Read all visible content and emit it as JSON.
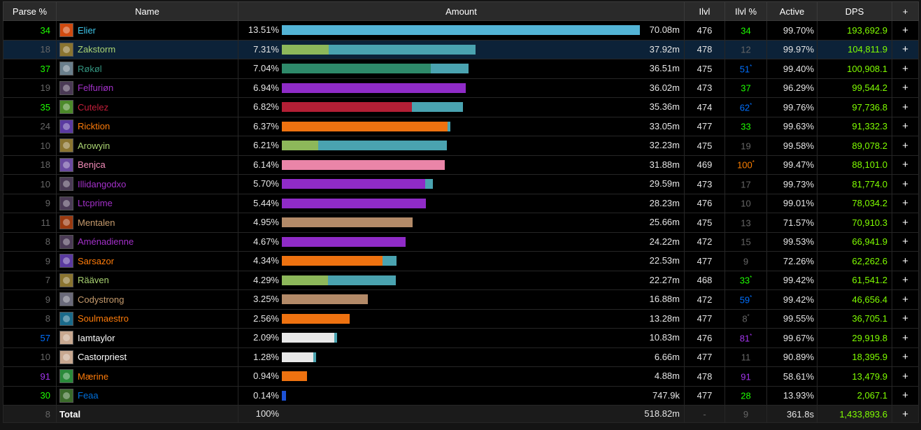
{
  "headers": {
    "parse": "Parse %",
    "name": "Name",
    "amount": "Amount",
    "ilvl": "Ilvl",
    "ilvlp": "Ilvl %",
    "active": "Active",
    "dps": "DPS",
    "plus": "+"
  },
  "colors": {
    "parse_green": "#1eff00",
    "parse_gray": "#666666",
    "parse_blue": "#0070ff",
    "parse_purple": "#a335ee",
    "ilvlp_orange": "#ff8000",
    "dps": "#80ff00",
    "bar_cyan": "#53b4d6",
    "bar_green": "#8db85a",
    "bar_teal": "#4aa3b0",
    "bar_sea": "#2e8a6a",
    "bar_purple": "#8f2bc7",
    "bar_red": "#b31f35",
    "bar_orange": "#ee7210",
    "bar_pink": "#ea85a8",
    "bar_tan": "#b38a68",
    "bar_white": "#e8e8e8",
    "bar_blue": "#1d52d6"
  },
  "rows": [
    {
      "parse": "34",
      "parse_color": "#1eff00",
      "icon": "mage-icon",
      "icon_color": "#cf4a10",
      "name": "Elier",
      "name_color": "#3fc7eb",
      "pct": "13.51%",
      "amount": "70.08m",
      "frac": 1.0,
      "segs": [
        {
          "f": 1.0,
          "c": "#53b4d6"
        }
      ],
      "ilvl": "476",
      "ilvlp": "34",
      "ilvlp_mark": "",
      "ilvlp_color": "#1eff00",
      "active": "99.70%",
      "dps": "193,692.9",
      "plus": "+"
    },
    {
      "parse": "18",
      "parse_color": "#666666",
      "icon": "hunter-icon",
      "icon_color": "#8a7430",
      "name": "Zakstorm",
      "name_color": "#aad372",
      "pct": "7.31%",
      "amount": "37.92m",
      "frac": 0.541,
      "segs": [
        {
          "f": 0.13,
          "c": "#8db85a"
        },
        {
          "f": 0.411,
          "c": "#4aa3b0"
        }
      ],
      "ilvl": "478",
      "ilvlp": "12",
      "ilvlp_mark": "",
      "ilvlp_color": "#666666",
      "active": "99.97%",
      "dps": "104,811.9",
      "plus": "+",
      "selected": true
    },
    {
      "parse": "37",
      "parse_color": "#1eff00",
      "icon": "monk-icon",
      "icon_color": "#6a7f8c",
      "name": "Røkøl",
      "name_color": "#33937f",
      "pct": "7.04%",
      "amount": "36.51m",
      "frac": 0.521,
      "segs": [
        {
          "f": 0.416,
          "c": "#2e8a6a"
        },
        {
          "f": 0.105,
          "c": "#4aa3b0"
        }
      ],
      "ilvl": "475",
      "ilvlp": "51",
      "ilvlp_mark": "*",
      "ilvlp_color": "#0070ff",
      "active": "99.40%",
      "dps": "100,908.1",
      "plus": "+"
    },
    {
      "parse": "19",
      "parse_color": "#666666",
      "icon": "demon-hunter-icon",
      "icon_color": "#4a3a55",
      "name": "Felfuriøn",
      "name_color": "#a330c9",
      "pct": "6.94%",
      "amount": "36.02m",
      "frac": 0.514,
      "segs": [
        {
          "f": 0.514,
          "c": "#8f2bc7"
        }
      ],
      "ilvl": "473",
      "ilvlp": "37",
      "ilvlp_mark": "",
      "ilvlp_color": "#1eff00",
      "active": "96.29%",
      "dps": "99,544.2",
      "plus": "+"
    },
    {
      "parse": "35",
      "parse_color": "#1eff00",
      "icon": "death-knight-icon",
      "icon_color": "#4c8a2a",
      "name": "Cutelez",
      "name_color": "#c41e3a",
      "pct": "6.82%",
      "amount": "35.36m",
      "frac": 0.505,
      "segs": [
        {
          "f": 0.363,
          "c": "#b31f35"
        },
        {
          "f": 0.142,
          "c": "#4aa3b0"
        }
      ],
      "ilvl": "474",
      "ilvlp": "62",
      "ilvlp_mark": "*",
      "ilvlp_color": "#0070ff",
      "active": "99.76%",
      "dps": "97,736.8",
      "plus": "+"
    },
    {
      "parse": "24",
      "parse_color": "#666666",
      "icon": "druid-icon",
      "icon_color": "#5a3aa0",
      "name": "Ricktion",
      "name_color": "#ff7c0a",
      "pct": "6.37%",
      "amount": "33.05m",
      "frac": 0.471,
      "segs": [
        {
          "f": 0.463,
          "c": "#ee7210"
        },
        {
          "f": 0.008,
          "c": "#4aa3b0"
        }
      ],
      "ilvl": "477",
      "ilvlp": "33",
      "ilvlp_mark": "",
      "ilvlp_color": "#1eff00",
      "active": "99.63%",
      "dps": "91,332.3",
      "plus": "+"
    },
    {
      "parse": "10",
      "parse_color": "#666666",
      "icon": "hunter-icon",
      "icon_color": "#8a7430",
      "name": "Arowyin",
      "name_color": "#aad372",
      "pct": "6.21%",
      "amount": "32.23m",
      "frac": 0.46,
      "segs": [
        {
          "f": 0.102,
          "c": "#8db85a"
        },
        {
          "f": 0.358,
          "c": "#4aa3b0"
        }
      ],
      "ilvl": "475",
      "ilvlp": "19",
      "ilvlp_mark": "",
      "ilvlp_color": "#666666",
      "active": "99.58%",
      "dps": "89,078.2",
      "plus": "+"
    },
    {
      "parse": "18",
      "parse_color": "#666666",
      "icon": "paladin-icon",
      "icon_color": "#6a4aa0",
      "name": "Benjca",
      "name_color": "#f48cba",
      "pct": "6.14%",
      "amount": "31.88m",
      "frac": 0.455,
      "segs": [
        {
          "f": 0.455,
          "c": "#ea85a8"
        }
      ],
      "ilvl": "469",
      "ilvlp": "100",
      "ilvlp_mark": "*",
      "ilvlp_color": "#ff8000",
      "active": "99.47%",
      "dps": "88,101.0",
      "plus": "+"
    },
    {
      "parse": "10",
      "parse_color": "#666666",
      "icon": "demon-hunter-icon",
      "icon_color": "#4a3a55",
      "name": "Illidangodxo",
      "name_color": "#a330c9",
      "pct": "5.70%",
      "amount": "29.59m",
      "frac": 0.422,
      "segs": [
        {
          "f": 0.4,
          "c": "#8f2bc7"
        },
        {
          "f": 0.022,
          "c": "#4aa3b0"
        }
      ],
      "ilvl": "473",
      "ilvlp": "17",
      "ilvlp_mark": "",
      "ilvlp_color": "#666666",
      "active": "99.73%",
      "dps": "81,774.0",
      "plus": "+"
    },
    {
      "parse": "9",
      "parse_color": "#666666",
      "icon": "demon-hunter-icon",
      "icon_color": "#4a3a55",
      "name": "Ltcprime",
      "name_color": "#a330c9",
      "pct": "5.44%",
      "amount": "28.23m",
      "frac": 0.403,
      "segs": [
        {
          "f": 0.403,
          "c": "#8f2bc7"
        }
      ],
      "ilvl": "476",
      "ilvlp": "10",
      "ilvlp_mark": "",
      "ilvlp_color": "#666666",
      "active": "99.01%",
      "dps": "78,034.2",
      "plus": "+"
    },
    {
      "parse": "11",
      "parse_color": "#666666",
      "icon": "warrior-icon",
      "icon_color": "#9a3a10",
      "name": "Mentalen",
      "name_color": "#c69b6d",
      "pct": "4.95%",
      "amount": "25.66m",
      "frac": 0.366,
      "segs": [
        {
          "f": 0.366,
          "c": "#b38a68"
        }
      ],
      "ilvl": "475",
      "ilvlp": "13",
      "ilvlp_mark": "",
      "ilvlp_color": "#666666",
      "active": "71.57%",
      "dps": "70,910.3",
      "plus": "+"
    },
    {
      "parse": "8",
      "parse_color": "#666666",
      "icon": "demon-hunter-icon",
      "icon_color": "#4a3a55",
      "name": "Aménadienne",
      "name_color": "#a330c9",
      "pct": "4.67%",
      "amount": "24.22m",
      "frac": 0.345,
      "segs": [
        {
          "f": 0.345,
          "c": "#8f2bc7"
        }
      ],
      "ilvl": "472",
      "ilvlp": "15",
      "ilvlp_mark": "",
      "ilvlp_color": "#666666",
      "active": "99.53%",
      "dps": "66,941.9",
      "plus": "+"
    },
    {
      "parse": "9",
      "parse_color": "#666666",
      "icon": "druid-icon",
      "icon_color": "#5a3aa0",
      "name": "Sarsazor",
      "name_color": "#ff7c0a",
      "pct": "4.34%",
      "amount": "22.53m",
      "frac": 0.321,
      "segs": [
        {
          "f": 0.281,
          "c": "#ee7210"
        },
        {
          "f": 0.04,
          "c": "#4aa3b0"
        }
      ],
      "ilvl": "477",
      "ilvlp": "9",
      "ilvlp_mark": "",
      "ilvlp_color": "#666666",
      "active": "72.26%",
      "dps": "62,262.6",
      "plus": "+"
    },
    {
      "parse": "7",
      "parse_color": "#666666",
      "icon": "hunter-icon",
      "icon_color": "#8a7430",
      "name": "Rääven",
      "name_color": "#aad372",
      "pct": "4.29%",
      "amount": "22.27m",
      "frac": 0.318,
      "segs": [
        {
          "f": 0.128,
          "c": "#8db85a"
        },
        {
          "f": 0.19,
          "c": "#4aa3b0"
        }
      ],
      "ilvl": "468",
      "ilvlp": "33",
      "ilvlp_mark": "*",
      "ilvlp_color": "#1eff00",
      "active": "99.42%",
      "dps": "61,541.2",
      "plus": "+"
    },
    {
      "parse": "9",
      "parse_color": "#666666",
      "icon": "warrior-icon",
      "icon_color": "#6a6a7a",
      "name": "Codystrong",
      "name_color": "#c69b6d",
      "pct": "3.25%",
      "amount": "16.88m",
      "frac": 0.241,
      "segs": [
        {
          "f": 0.241,
          "c": "#b38a68"
        }
      ],
      "ilvl": "472",
      "ilvlp": "59",
      "ilvlp_mark": "*",
      "ilvlp_color": "#0070ff",
      "active": "99.42%",
      "dps": "46,656.4",
      "plus": "+"
    },
    {
      "parse": "8",
      "parse_color": "#666666",
      "icon": "druid-icon",
      "icon_color": "#1a6a8a",
      "name": "Soulmaestro",
      "name_color": "#ff7c0a",
      "pct": "2.56%",
      "amount": "13.28m",
      "frac": 0.189,
      "segs": [
        {
          "f": 0.189,
          "c": "#ee7210"
        }
      ],
      "ilvl": "477",
      "ilvlp": "8",
      "ilvlp_mark": "*",
      "ilvlp_color": "#666666",
      "active": "99.55%",
      "dps": "36,705.1",
      "plus": "+"
    },
    {
      "parse": "57",
      "parse_color": "#0070ff",
      "icon": "priest-icon",
      "icon_color": "#c8a890",
      "name": "Iamtaylor",
      "name_color": "#ffffff",
      "pct": "2.09%",
      "amount": "10.83m",
      "frac": 0.155,
      "segs": [
        {
          "f": 0.147,
          "c": "#e8e8e8"
        },
        {
          "f": 0.008,
          "c": "#4aa3b0"
        }
      ],
      "ilvl": "476",
      "ilvlp": "81",
      "ilvlp_mark": "*",
      "ilvlp_color": "#a335ee",
      "active": "99.67%",
      "dps": "29,919.8",
      "plus": "+"
    },
    {
      "parse": "10",
      "parse_color": "#666666",
      "icon": "priest-icon",
      "icon_color": "#c8a890",
      "name": "Castorpriest",
      "name_color": "#ffffff",
      "pct": "1.28%",
      "amount": "6.66m",
      "frac": 0.095,
      "segs": [
        {
          "f": 0.088,
          "c": "#e8e8e8"
        },
        {
          "f": 0.007,
          "c": "#4aa3b0"
        }
      ],
      "ilvl": "477",
      "ilvlp": "11",
      "ilvlp_mark": "",
      "ilvlp_color": "#666666",
      "active": "90.89%",
      "dps": "18,395.9",
      "plus": "+"
    },
    {
      "parse": "91",
      "parse_color": "#a335ee",
      "icon": "druid-icon",
      "icon_color": "#2a8a3a",
      "name": "Mærine",
      "name_color": "#ff7c0a",
      "pct": "0.94%",
      "amount": "4.88m",
      "frac": 0.07,
      "segs": [
        {
          "f": 0.07,
          "c": "#ee7210"
        }
      ],
      "ilvl": "478",
      "ilvlp": "91",
      "ilvlp_mark": "",
      "ilvlp_color": "#a335ee",
      "active": "58.61%",
      "dps": "13,479.9",
      "plus": "+"
    },
    {
      "parse": "30",
      "parse_color": "#1eff00",
      "icon": "shaman-icon",
      "icon_color": "#3a6a2a",
      "name": "Feaa",
      "name_color": "#0070dd",
      "pct": "0.14%",
      "amount": "747.9k",
      "frac": 0.011,
      "segs": [
        {
          "f": 0.011,
          "c": "#1d52d6"
        }
      ],
      "ilvl": "477",
      "ilvlp": "28",
      "ilvlp_mark": "",
      "ilvlp_color": "#1eff00",
      "active": "13.93%",
      "dps": "2,067.1",
      "plus": "+"
    }
  ],
  "total": {
    "parse": "8",
    "name": "Total",
    "pct": "100%",
    "amount": "518.82m",
    "ilvl": "-",
    "ilvlp": "9",
    "active": "361.8s",
    "dps": "1,433,893.6",
    "plus": "+"
  }
}
